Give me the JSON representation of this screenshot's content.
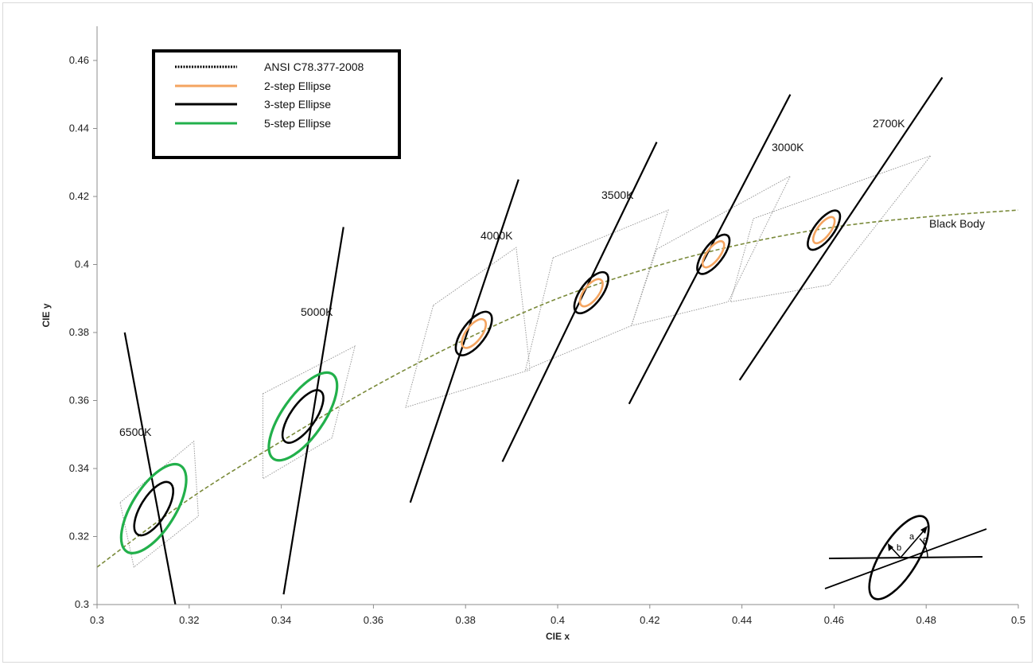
{
  "chart_data": {
    "type": "scatter",
    "xlabel": "CIE x",
    "ylabel": "CIE y",
    "xlim": [
      0.3,
      0.5
    ],
    "ylim": [
      0.3,
      0.47
    ],
    "x_ticks": [
      "0.3",
      "0.32",
      "0.34",
      "0.36",
      "0.38",
      "0.4",
      "0.42",
      "0.44",
      "0.46",
      "0.48",
      "0.5"
    ],
    "y_ticks": [
      "0.3",
      "0.32",
      "0.34",
      "0.36",
      "0.38",
      "0.4",
      "0.42",
      "0.44",
      "0.46"
    ],
    "legend": {
      "placement": "top-left",
      "entries": [
        {
          "label": "ANSI C78.377-2008",
          "style": "dotted",
          "color": "#000000"
        },
        {
          "label": "2-step Ellipse",
          "style": "solid",
          "color": "#f4a460"
        },
        {
          "label": "3-step Ellipse",
          "style": "solid",
          "color": "#000000"
        },
        {
          "label": "5-step Ellipse",
          "style": "solid",
          "color": "#22b04b"
        }
      ]
    },
    "black_body": {
      "label": "Black Body",
      "color": "#7a8a3a",
      "points": [
        [
          0.3,
          0.311
        ],
        [
          0.32,
          0.331
        ],
        [
          0.34,
          0.348
        ],
        [
          0.36,
          0.364
        ],
        [
          0.38,
          0.378
        ],
        [
          0.4,
          0.39
        ],
        [
          0.42,
          0.399
        ],
        [
          0.44,
          0.406
        ],
        [
          0.46,
          0.411
        ],
        [
          0.48,
          0.414
        ],
        [
          0.5,
          0.416
        ]
      ]
    },
    "cct_groups": [
      {
        "label": "6500K",
        "isotherm": [
          [
            0.306,
            0.38
          ],
          [
            0.317,
            0.3
          ]
        ],
        "center": [
          0.3123,
          0.3282
        ],
        "quad": [
          [
            0.305,
            0.33
          ],
          [
            0.321,
            0.348
          ],
          [
            0.322,
            0.326
          ],
          [
            0.308,
            0.311
          ]
        ],
        "ellipses": [
          {
            "steps": 3,
            "a": 0.0066,
            "b": 0.0028,
            "theta": 58
          },
          {
            "steps": 5,
            "a": 0.011,
            "b": 0.0047,
            "theta": 58
          }
        ]
      },
      {
        "label": "5000K",
        "isotherm": [
          [
            0.3405,
            0.303
          ],
          [
            0.3535,
            0.411
          ]
        ],
        "center": [
          0.3447,
          0.3553
        ],
        "quad": [
          [
            0.336,
            0.362
          ],
          [
            0.356,
            0.376
          ],
          [
            0.351,
            0.349
          ],
          [
            0.336,
            0.337
          ]
        ],
        "ellipses": [
          {
            "steps": 3,
            "a": 0.0067,
            "b": 0.0027,
            "theta": 55
          },
          {
            "steps": 5,
            "a": 0.0112,
            "b": 0.0045,
            "theta": 55
          }
        ]
      },
      {
        "label": "4000K",
        "isotherm": [
          [
            0.368,
            0.33
          ],
          [
            0.3915,
            0.425
          ]
        ],
        "center": [
          0.3818,
          0.3797
        ],
        "quad": [
          [
            0.373,
            0.388
          ],
          [
            0.391,
            0.405
          ],
          [
            0.394,
            0.369
          ],
          [
            0.367,
            0.358
          ]
        ],
        "ellipses": [
          {
            "steps": 2,
            "a": 0.0037,
            "b": 0.0017,
            "theta": 53
          },
          {
            "steps": 3,
            "a": 0.0056,
            "b": 0.0025,
            "theta": 53
          }
        ]
      },
      {
        "label": "3500K",
        "isotherm": [
          [
            0.388,
            0.342
          ],
          [
            0.4215,
            0.436
          ]
        ],
        "center": [
          0.4073,
          0.3917
        ],
        "quad": [
          [
            0.399,
            0.402
          ],
          [
            0.424,
            0.416
          ],
          [
            0.416,
            0.382
          ],
          [
            0.393,
            0.369
          ]
        ],
        "ellipses": [
          {
            "steps": 2,
            "a": 0.0035,
            "b": 0.0016,
            "theta": 53
          },
          {
            "steps": 3,
            "a": 0.0053,
            "b": 0.0023,
            "theta": 53
          }
        ]
      },
      {
        "label": "3000K",
        "isotherm": [
          [
            0.4155,
            0.359
          ],
          [
            0.4505,
            0.45
          ]
        ],
        "center": [
          0.4338,
          0.403
        ],
        "quad": [
          [
            0.4215,
            0.4045
          ],
          [
            0.4505,
            0.426
          ],
          [
            0.437,
            0.389
          ],
          [
            0.416,
            0.382
          ]
        ],
        "ellipses": [
          {
            "steps": 2,
            "a": 0.0034,
            "b": 0.0014,
            "theta": 53
          },
          {
            "steps": 3,
            "a": 0.0051,
            "b": 0.0021,
            "theta": 53
          }
        ]
      },
      {
        "label": "2700K",
        "isotherm": [
          [
            0.4395,
            0.366
          ],
          [
            0.4835,
            0.455
          ]
        ],
        "center": [
          0.4578,
          0.4101
        ],
        "quad": [
          [
            0.4425,
            0.4135
          ],
          [
            0.481,
            0.432
          ],
          [
            0.459,
            0.394
          ],
          [
            0.4375,
            0.389
          ]
        ],
        "ellipses": [
          {
            "steps": 2,
            "a": 0.0034,
            "b": 0.0014,
            "theta": 53
          },
          {
            "steps": 3,
            "a": 0.0051,
            "b": 0.0021,
            "theta": 53
          }
        ]
      }
    ],
    "inset": {
      "labels": [
        "a",
        "b",
        "θ"
      ]
    }
  }
}
